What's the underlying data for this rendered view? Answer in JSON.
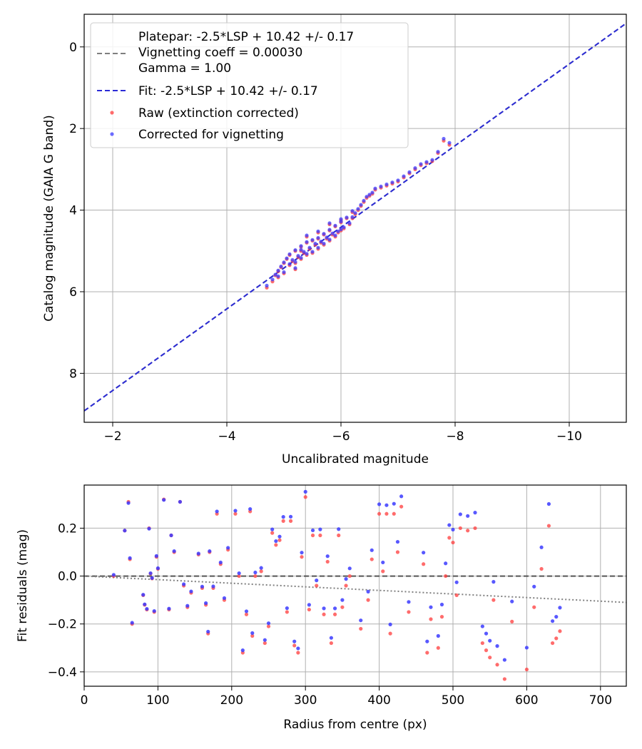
{
  "chart_data": [
    {
      "type": "scatter",
      "title": "",
      "xlabel": "Uncalibrated magnitude",
      "ylabel": "Catalog magnitude (GAIA G band)",
      "xlim": [
        -1.5,
        -11.0
      ],
      "ylim": [
        9.2,
        -0.8
      ],
      "x_inverted": true,
      "y_inverted": true,
      "grid": true,
      "legend_position": "upper-left",
      "x_ticks": [
        -2,
        -4,
        -6,
        -8,
        -10
      ],
      "x_tick_labels": [
        "−2",
        "−4",
        "−6",
        "−8",
        "−10"
      ],
      "y_ticks": [
        0,
        2,
        4,
        6,
        8
      ],
      "y_tick_labels": [
        "0",
        "2",
        "4",
        "6",
        "8"
      ],
      "legend": [
        {
          "label_lines": [
            "Platepar: -2.5*LSP + 10.42 +/- 0.17",
            "Vignetting coeff = 0.00030",
            "Gamma = 1.00"
          ],
          "style": "dashed",
          "color": "#7f7f7f"
        },
        {
          "label_lines": [
            "Fit: -2.5*LSP + 10.42 +/- 0.17"
          ],
          "style": "dashed",
          "color": "#2b2bd6"
        },
        {
          "label_lines": [
            "Raw (extinction corrected)"
          ],
          "style": "marker",
          "color": "#ff3b3b"
        },
        {
          "label_lines": [
            "Corrected for vignetting"
          ],
          "style": "marker",
          "color": "#3b3bff"
        }
      ],
      "lines": [
        {
          "name": "Platepar",
          "slope": 1.0,
          "intercept": 10.42,
          "color": "#7f7f7f",
          "style": "dashed"
        },
        {
          "name": "Fit",
          "slope": 1.0,
          "intercept": 10.42,
          "color": "#2b2bd6",
          "style": "dashed"
        }
      ],
      "series": [
        {
          "name": "Raw (extinction corrected)",
          "color": "#ff3b3b",
          "x": [
            -4.7,
            -4.8,
            -4.85,
            -4.9,
            -4.95,
            -5.0,
            -5.0,
            -5.05,
            -5.1,
            -5.1,
            -5.15,
            -5.2,
            -5.2,
            -5.25,
            -5.3,
            -5.3,
            -5.35,
            -5.4,
            -5.4,
            -5.45,
            -5.5,
            -5.5,
            -5.55,
            -5.6,
            -5.6,
            -5.65,
            -5.7,
            -5.7,
            -5.75,
            -5.8,
            -5.8,
            -5.85,
            -5.9,
            -5.9,
            -5.95,
            -6.0,
            -6.0,
            -6.05,
            -6.1,
            -6.15,
            -6.2,
            -6.25,
            -6.3,
            -6.35,
            -6.4,
            -6.45,
            -6.5,
            -6.55,
            -6.6,
            -6.7,
            -6.8,
            -6.9,
            -7.0,
            -7.1,
            -7.2,
            -7.3,
            -7.4,
            -7.5,
            -7.6,
            -7.7,
            -7.8,
            -7.9,
            -5.2,
            -5.6,
            -6.2,
            -4.9,
            -5.4,
            -5.8,
            -6.0,
            -5.3
          ],
          "y": [
            5.9,
            5.75,
            5.6,
            5.5,
            5.4,
            5.3,
            5.55,
            5.2,
            5.1,
            5.35,
            5.25,
            5.0,
            5.3,
            5.15,
            4.9,
            5.2,
            5.05,
            4.8,
            5.1,
            4.95,
            4.75,
            5.05,
            4.85,
            4.7,
            4.95,
            4.8,
            4.6,
            4.85,
            4.7,
            4.5,
            4.75,
            4.6,
            4.4,
            4.65,
            4.55,
            4.3,
            4.5,
            4.45,
            4.2,
            4.35,
            4.2,
            4.1,
            4.0,
            3.9,
            3.8,
            3.7,
            3.65,
            3.6,
            3.5,
            3.45,
            3.4,
            3.35,
            3.3,
            3.2,
            3.1,
            3.0,
            2.9,
            2.85,
            2.8,
            2.6,
            2.3,
            2.4,
            5.45,
            4.55,
            4.05,
            5.65,
            4.65,
            4.35,
            4.25,
            5.0
          ]
        },
        {
          "name": "Corrected for vignetting",
          "color": "#3b3bff",
          "x": [
            -4.7,
            -4.8,
            -4.85,
            -4.9,
            -4.95,
            -5.0,
            -5.0,
            -5.05,
            -5.1,
            -5.1,
            -5.15,
            -5.2,
            -5.2,
            -5.25,
            -5.3,
            -5.3,
            -5.35,
            -5.4,
            -5.4,
            -5.45,
            -5.5,
            -5.5,
            -5.55,
            -5.6,
            -5.6,
            -5.65,
            -5.7,
            -5.7,
            -5.75,
            -5.8,
            -5.8,
            -5.85,
            -5.9,
            -5.9,
            -5.95,
            -6.0,
            -6.0,
            -6.05,
            -6.1,
            -6.15,
            -6.2,
            -6.25,
            -6.3,
            -6.35,
            -6.4,
            -6.45,
            -6.5,
            -6.55,
            -6.6,
            -6.7,
            -6.8,
            -6.9,
            -7.0,
            -7.1,
            -7.2,
            -7.3,
            -7.4,
            -7.5,
            -7.6,
            -7.7,
            -7.8,
            -7.9,
            -5.2,
            -5.6,
            -6.2,
            -4.9,
            -5.4,
            -5.8,
            -6.0,
            -5.3
          ],
          "y": [
            5.85,
            5.7,
            5.58,
            5.48,
            5.38,
            5.28,
            5.52,
            5.18,
            5.08,
            5.32,
            5.22,
            4.98,
            5.27,
            5.12,
            4.88,
            5.17,
            5.02,
            4.78,
            5.07,
            4.92,
            4.73,
            5.02,
            4.82,
            4.68,
            4.92,
            4.77,
            4.58,
            4.82,
            4.67,
            4.48,
            4.72,
            4.57,
            4.38,
            4.62,
            4.52,
            4.28,
            4.47,
            4.42,
            4.18,
            4.32,
            4.17,
            4.07,
            3.97,
            3.87,
            3.77,
            3.67,
            3.62,
            3.57,
            3.47,
            3.42,
            3.37,
            3.32,
            3.27,
            3.17,
            3.07,
            2.97,
            2.87,
            2.82,
            2.77,
            2.57,
            2.25,
            2.35,
            5.42,
            4.52,
            4.02,
            5.62,
            4.62,
            4.32,
            4.22,
            4.97
          ]
        }
      ]
    },
    {
      "type": "scatter",
      "title": "",
      "xlabel": "Radius from centre (px)",
      "ylabel": "Fit residuals (mag)",
      "xlim": [
        0,
        735
      ],
      "ylim": [
        -0.46,
        0.38
      ],
      "grid": true,
      "x_ticks": [
        0,
        100,
        200,
        300,
        400,
        500,
        600,
        700
      ],
      "x_tick_labels": [
        "0",
        "100",
        "200",
        "300",
        "400",
        "500",
        "600",
        "700"
      ],
      "y_ticks": [
        0.2,
        0.0,
        -0.2,
        -0.4
      ],
      "y_tick_labels": [
        "0.2",
        "0.0",
        "−0.2",
        "−0.4"
      ],
      "reference_lines": [
        {
          "name": "zero",
          "type": "horizontal",
          "y": 0.0,
          "color": "#555555",
          "style": "dashed"
        },
        {
          "name": "vignetting",
          "type": "line",
          "points": [
            [
              0,
              0.0
            ],
            [
              735,
              -0.11
            ]
          ],
          "color": "#808080",
          "style": "dotted"
        }
      ],
      "series": [
        {
          "name": "Raw",
          "color": "#ff3b3b",
          "x": [
            40,
            55,
            60,
            62,
            65,
            80,
            82,
            85,
            88,
            90,
            92,
            95,
            98,
            100,
            108,
            115,
            118,
            122,
            130,
            135,
            140,
            145,
            155,
            160,
            165,
            168,
            170,
            175,
            180,
            185,
            190,
            195,
            205,
            210,
            215,
            220,
            225,
            228,
            232,
            240,
            245,
            250,
            255,
            260,
            265,
            270,
            275,
            280,
            285,
            290,
            295,
            300,
            305,
            310,
            315,
            320,
            325,
            330,
            335,
            340,
            345,
            350,
            355,
            360,
            375,
            385,
            390,
            400,
            405,
            410,
            415,
            420,
            425,
            430,
            440,
            460,
            465,
            470,
            480,
            485,
            490,
            495,
            500,
            505,
            510,
            520,
            530,
            540,
            545,
            550,
            555,
            560,
            570,
            580,
            600,
            610,
            620,
            630,
            635,
            640,
            645
          ],
          "y": [
            0.0,
            0.19,
            0.31,
            0.07,
            -0.2,
            -0.08,
            -0.12,
            -0.14,
            0.2,
            0.01,
            -0.01,
            -0.15,
            0.08,
            0.03,
            0.32,
            -0.14,
            0.17,
            0.1,
            0.31,
            -0.04,
            -0.13,
            -0.07,
            0.09,
            -0.05,
            -0.12,
            -0.24,
            0.1,
            -0.05,
            0.26,
            0.05,
            -0.1,
            0.11,
            0.26,
            0.0,
            -0.32,
            -0.16,
            0.27,
            -0.25,
            0.0,
            0.02,
            -0.28,
            -0.21,
            0.18,
            0.13,
            0.15,
            0.23,
            -0.15,
            0.23,
            -0.29,
            -0.32,
            0.08,
            0.33,
            -0.14,
            0.17,
            -0.04,
            0.17,
            -0.16,
            0.06,
            -0.28,
            -0.16,
            0.17,
            -0.13,
            -0.04,
            0.0,
            -0.22,
            -0.1,
            0.07,
            0.26,
            0.02,
            0.26,
            -0.24,
            0.26,
            0.1,
            0.29,
            -0.15,
            0.05,
            -0.32,
            -0.18,
            -0.3,
            -0.17,
            0.0,
            0.16,
            0.14,
            -0.08,
            0.2,
            0.19,
            0.2,
            -0.28,
            -0.31,
            -0.34,
            -0.1,
            -0.37,
            -0.43,
            -0.19,
            -0.39,
            -0.13,
            0.03,
            0.21,
            -0.28,
            -0.26,
            -0.23
          ]
        },
        {
          "name": "Corrected",
          "color": "#3b3bff",
          "x": [
            40,
            55,
            60,
            62,
            65,
            80,
            82,
            85,
            88,
            90,
            92,
            95,
            98,
            100,
            108,
            115,
            118,
            122,
            130,
            135,
            140,
            145,
            155,
            160,
            165,
            168,
            170,
            175,
            180,
            185,
            190,
            195,
            205,
            210,
            215,
            220,
            225,
            228,
            232,
            240,
            245,
            250,
            255,
            260,
            265,
            270,
            275,
            280,
            285,
            290,
            295,
            300,
            305,
            310,
            315,
            320,
            325,
            330,
            335,
            340,
            345,
            350,
            355,
            360,
            375,
            385,
            390,
            400,
            405,
            410,
            415,
            420,
            425,
            430,
            440,
            460,
            465,
            470,
            480,
            485,
            490,
            495,
            500,
            505,
            510,
            520,
            530,
            540,
            545,
            550,
            555,
            560,
            570,
            580,
            600,
            610,
            620,
            630,
            635,
            640,
            645
          ],
          "y": [
            0.005,
            0.19,
            0.305,
            0.075,
            -0.195,
            -0.078,
            -0.118,
            -0.137,
            0.198,
            0.012,
            -0.008,
            -0.146,
            0.084,
            0.033,
            0.318,
            -0.136,
            0.17,
            0.104,
            0.31,
            -0.034,
            -0.124,
            -0.064,
            0.094,
            -0.044,
            -0.113,
            -0.232,
            0.104,
            -0.043,
            0.27,
            0.057,
            -0.092,
            0.118,
            0.273,
            0.012,
            -0.31,
            -0.147,
            0.28,
            -0.238,
            0.015,
            0.034,
            -0.267,
            -0.197,
            0.195,
            0.146,
            0.165,
            0.247,
            -0.134,
            0.248,
            -0.273,
            -0.302,
            0.098,
            0.352,
            -0.12,
            0.191,
            -0.018,
            0.195,
            -0.135,
            0.083,
            -0.258,
            -0.135,
            0.196,
            -0.1,
            -0.012,
            0.032,
            -0.185,
            -0.065,
            0.108,
            0.3,
            0.057,
            0.296,
            -0.202,
            0.302,
            0.143,
            0.333,
            -0.108,
            0.098,
            -0.273,
            -0.13,
            -0.25,
            -0.119,
            0.053,
            0.213,
            0.194,
            -0.026,
            0.258,
            0.251,
            0.265,
            -0.21,
            -0.24,
            -0.27,
            -0.024,
            -0.292,
            -0.35,
            -0.106,
            -0.299,
            -0.044,
            0.12,
            0.301,
            -0.188,
            -0.17,
            -0.132
          ]
        }
      ]
    }
  ]
}
